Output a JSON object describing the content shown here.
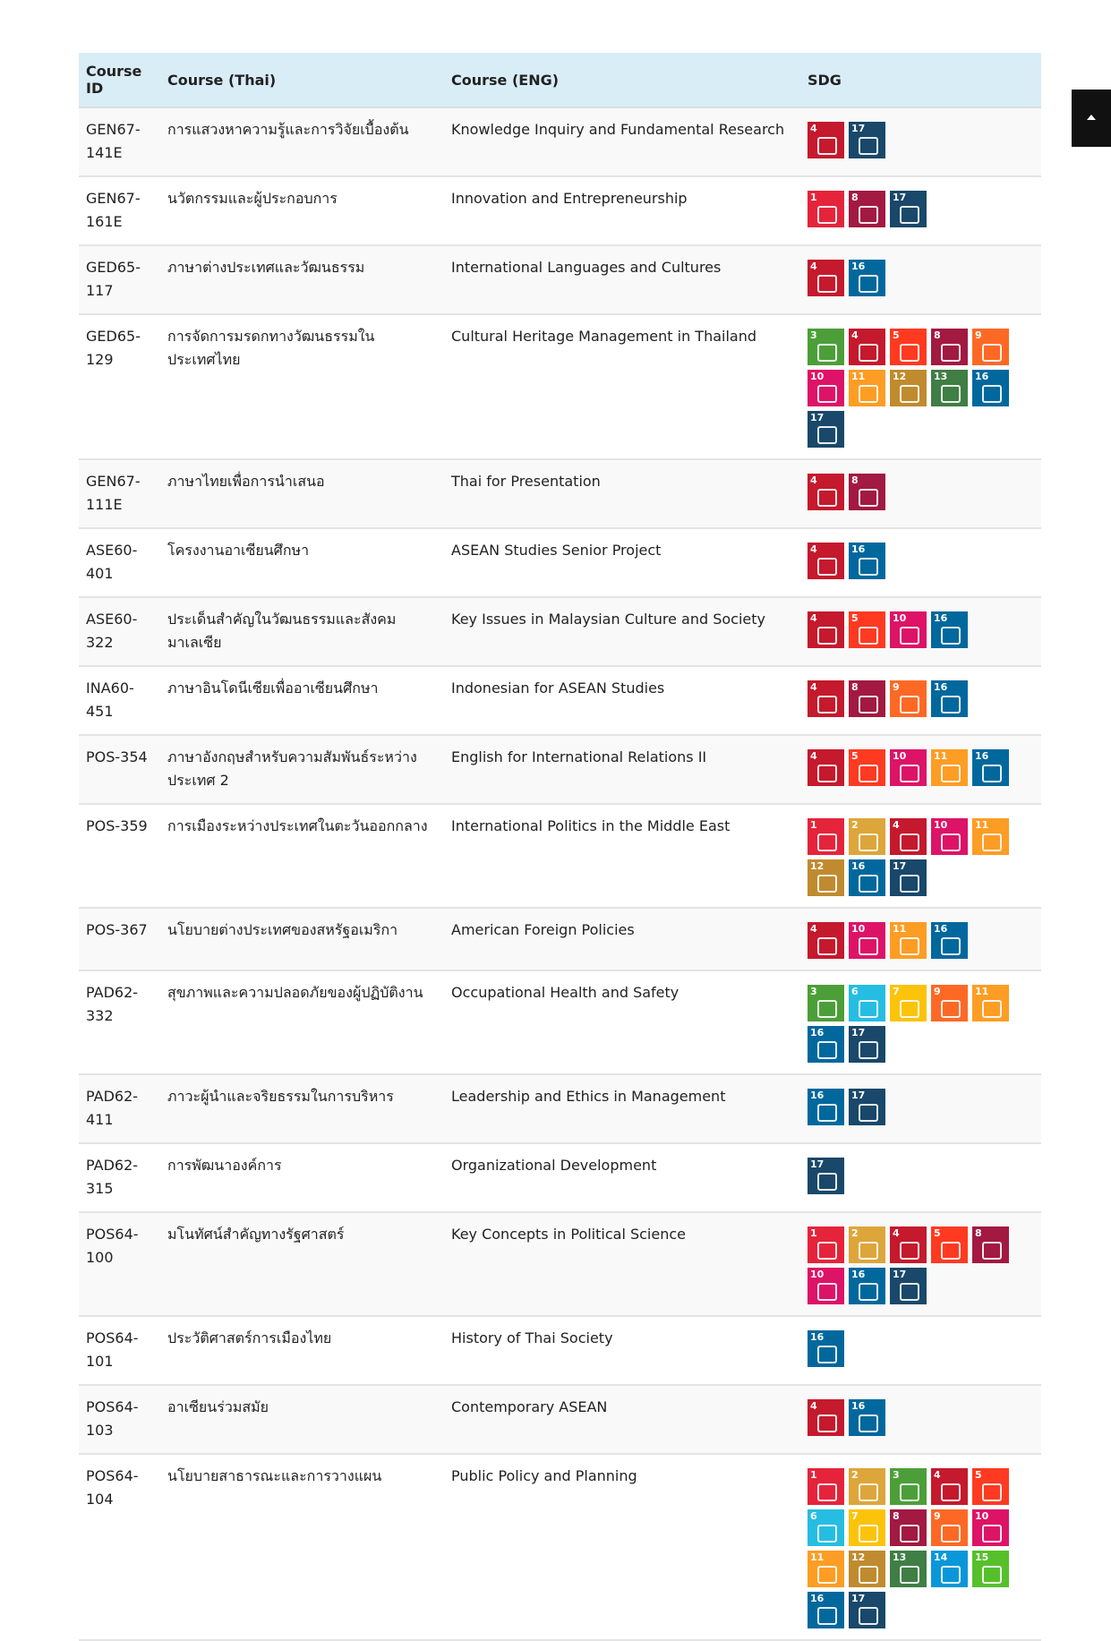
{
  "table": {
    "header": [
      "Course ID",
      "Course (Thai)",
      "Course (ENG)",
      "SDG"
    ],
    "rows": [
      {
        "id": "GEN67-141E",
        "thai": "การแสวงหาความรู้และการวิจัยเบื้องต้น",
        "eng": "Knowledge Inquiry and Fundamental Research",
        "sdgs": [
          4,
          17
        ]
      },
      {
        "id": "GEN67-161E",
        "thai": "นวัตกรรมและผู้ประกอบการ",
        "eng": "Innovation and Entrepreneurship",
        "sdgs": [
          1,
          8,
          17
        ]
      },
      {
        "id": "GED65-117",
        "thai": "ภาษาต่างประเทศและวัฒนธรรม",
        "eng": "International Languages and Cultures",
        "sdgs": [
          4,
          16
        ]
      },
      {
        "id": "GED65-129",
        "thai": "การจัดการมรดกทางวัฒนธรรมในประเทศไทย",
        "eng": "Cultural Heritage Management in Thailand",
        "sdgs": [
          3,
          4,
          5,
          8,
          9,
          10,
          11,
          12,
          13,
          16,
          17
        ]
      },
      {
        "id": "GEN67-111E",
        "thai": "ภาษาไทยเพื่อการนำเสนอ",
        "eng": "Thai for Presentation",
        "sdgs": [
          4,
          8
        ]
      },
      {
        "id": "ASE60-401",
        "thai": "โครงงานอาเซียนศึกษา",
        "eng": "ASEAN Studies Senior Project",
        "sdgs": [
          4,
          16
        ]
      },
      {
        "id": "ASE60-322",
        "thai": "ประเด็นสำคัญในวัฒนธรรมและสังคมมาเลเซีย",
        "eng": "Key Issues in Malaysian Culture and Society",
        "sdgs": [
          4,
          5,
          10,
          16
        ]
      },
      {
        "id": "INA60-451",
        "thai": "ภาษาอินโดนีเซียเพื่ออาเซียนศึกษา",
        "eng": "Indonesian for ASEAN Studies",
        "sdgs": [
          4,
          8,
          9,
          16
        ]
      },
      {
        "id": "POS-354",
        "thai": "ภาษาอังกฤษสำหรับความสัมพันธ์ระหว่างประเทศ 2",
        "eng": "English for International Relations II",
        "sdgs": [
          4,
          5,
          10,
          11,
          16
        ]
      },
      {
        "id": "POS-359",
        "thai": "การเมืองระหว่างประเทศในตะวันออกกลาง",
        "eng": "International Politics in the Middle East",
        "sdgs": [
          1,
          2,
          4,
          10,
          11,
          12,
          16,
          17
        ]
      },
      {
        "id": "POS-367",
        "thai": "นโยบายต่างประเทศของสหรัฐอเมริกา",
        "eng": "American Foreign Policies",
        "sdgs": [
          4,
          10,
          11,
          16
        ]
      },
      {
        "id": "PAD62-332",
        "thai": "สุขภาพและความปลอดภัยของผู้ปฏิบัติงาน",
        "eng": "Occupational Health and Safety",
        "sdgs": [
          3,
          6,
          7,
          9,
          11,
          16,
          17
        ]
      },
      {
        "id": "PAD62-411",
        "thai": "ภาวะผู้นำและจริยธรรมในการบริหาร",
        "eng": "Leadership and Ethics in Management",
        "sdgs": [
          16,
          17
        ]
      },
      {
        "id": "PAD62-315",
        "thai": "การพัฒนาองค์การ",
        "eng": "Organizational Development",
        "sdgs": [
          17
        ]
      },
      {
        "id": "POS64-100",
        "thai": "มโนทัศน์สำคัญทางรัฐศาสตร์",
        "eng": "Key Concepts in Political Science",
        "sdgs": [
          1,
          2,
          4,
          5,
          8,
          10,
          16,
          17
        ]
      },
      {
        "id": "POS64-101",
        "thai": "ประวัติศาสตร์การเมืองไทย",
        "eng": "History of Thai Society",
        "sdgs": [
          16
        ]
      },
      {
        "id": "POS64-103",
        "thai": "อาเซียนร่วมสมัย",
        "eng": "Contemporary ASEAN",
        "sdgs": [
          4,
          16
        ]
      },
      {
        "id": "POS64-104",
        "thai": "นโยบายสาธารณะและการวางแผน",
        "eng": "Public Policy and Planning",
        "sdgs": [
          1,
          2,
          3,
          4,
          5,
          6,
          7,
          8,
          9,
          10,
          11,
          12,
          13,
          14,
          15,
          16,
          17
        ]
      }
    ]
  }
}
